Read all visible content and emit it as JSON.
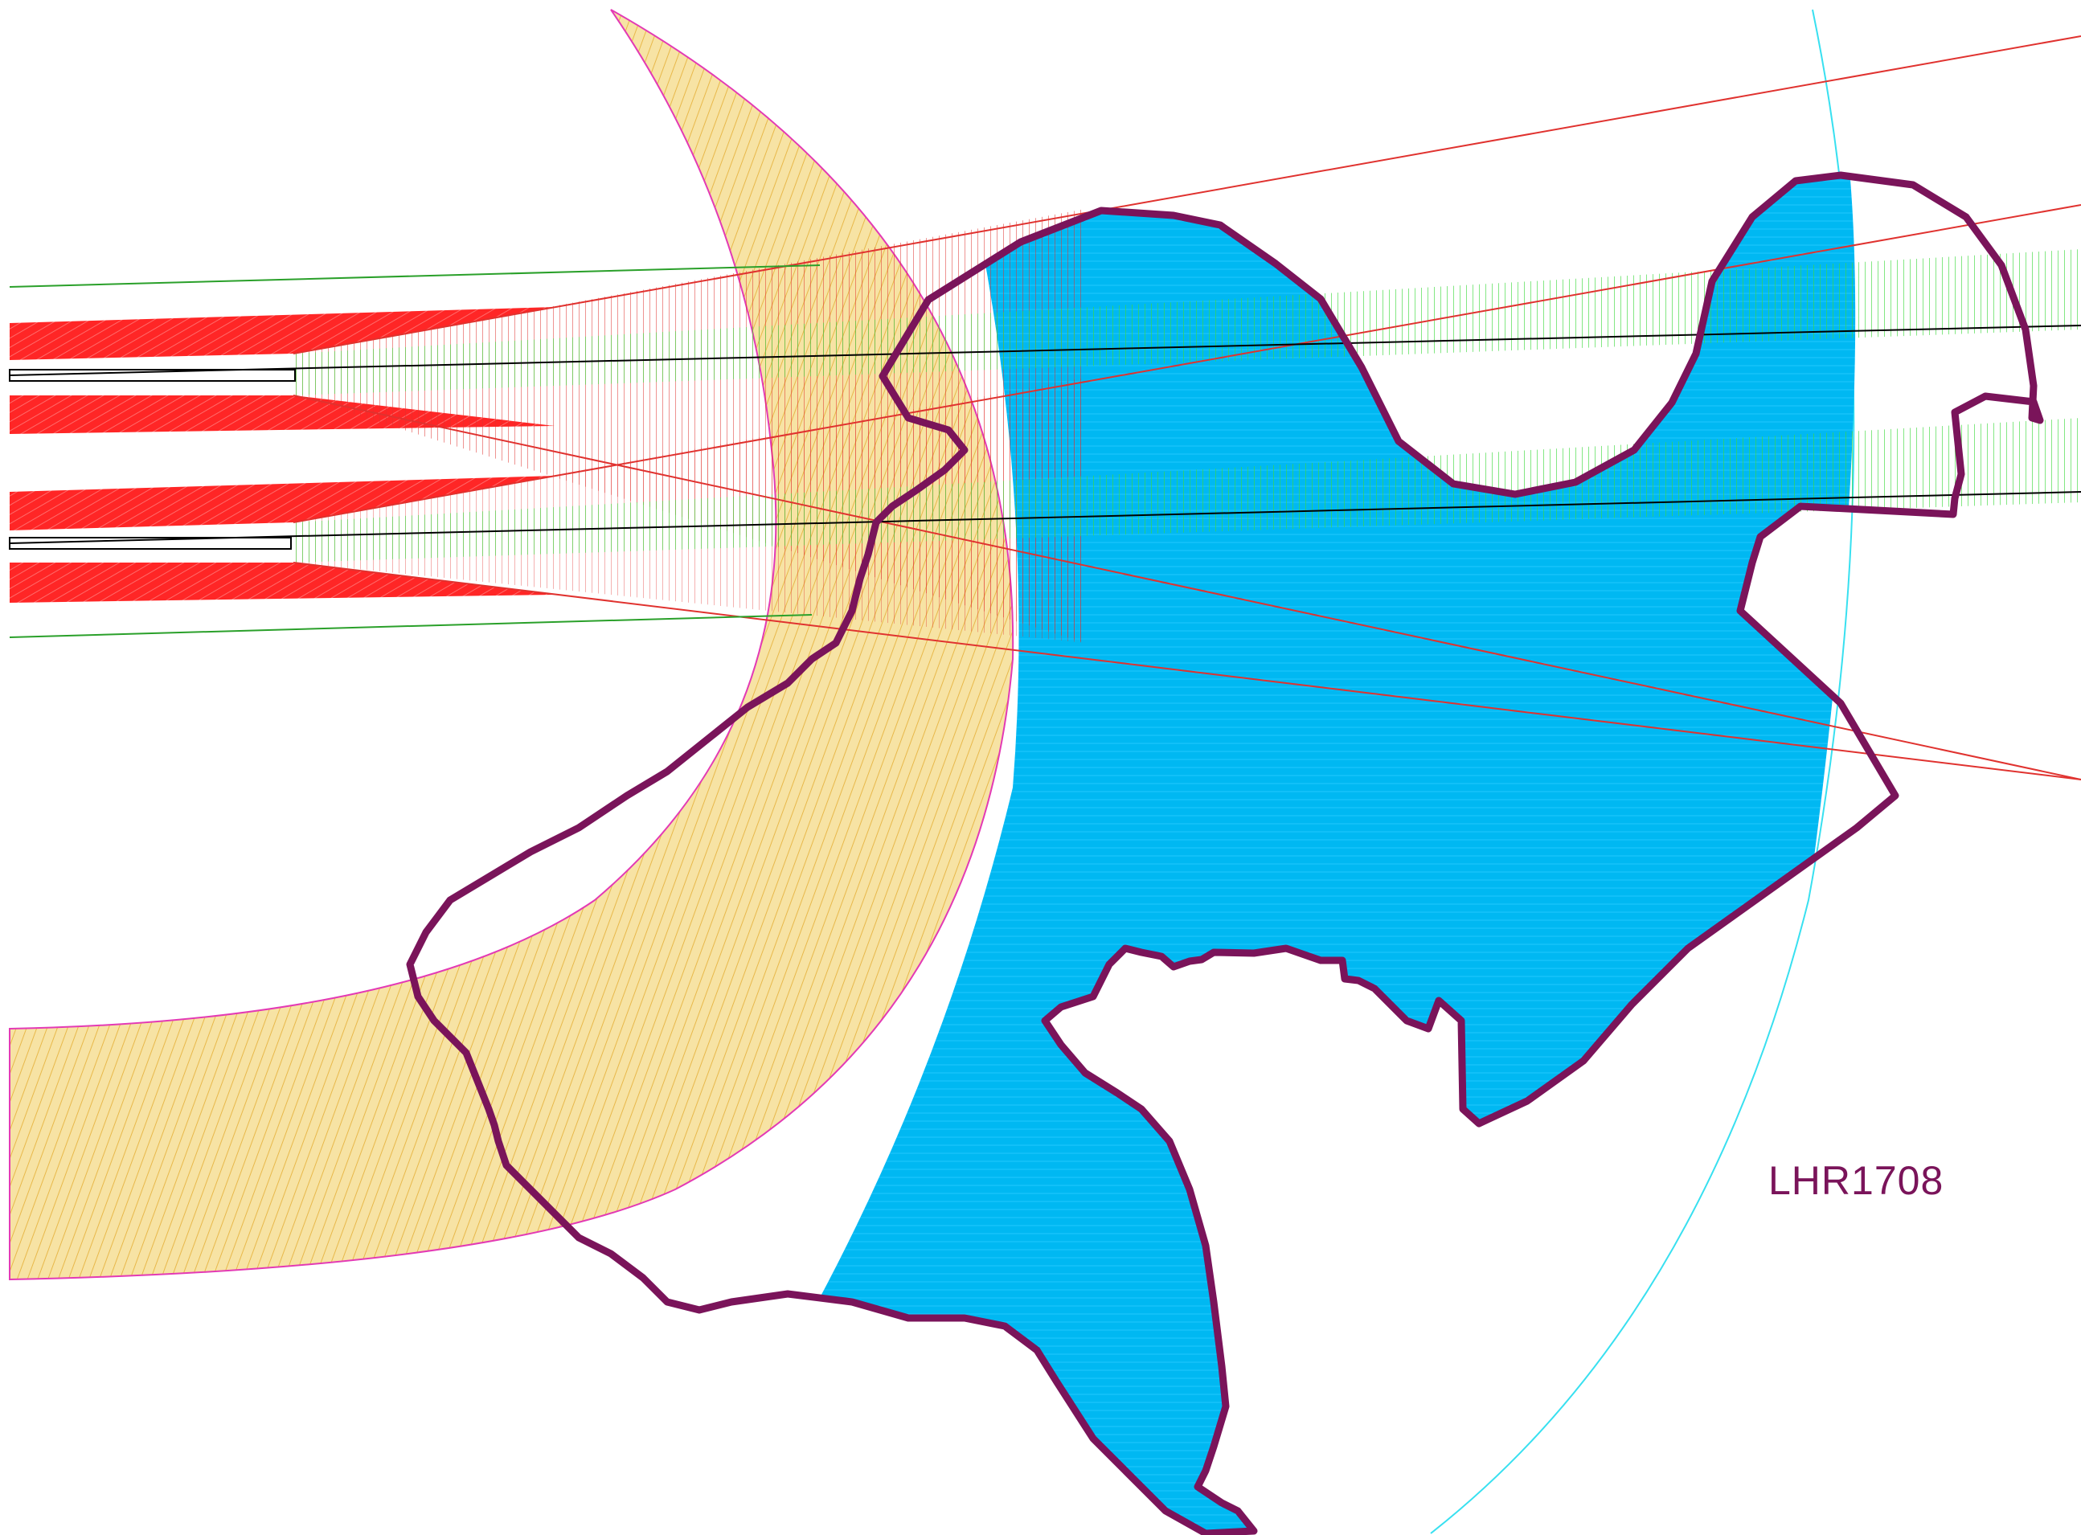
{
  "map": {
    "label": "LHR1708",
    "colors": {
      "background": "#ffffff",
      "boundary": "#7a145a",
      "area_fill": "#00b8f2",
      "arc_band": "#f4d27a",
      "arc_band_edge": "#e33ab5",
      "runway_wedge": "#ff2626",
      "approach_red": "#e0322f",
      "approach_green": "#3fd93f",
      "outer_arc": "#38e0f0",
      "centerline": "#000000"
    },
    "layers": [
      {
        "name": "arc-band",
        "color_key": "arc_band"
      },
      {
        "name": "boundary-area",
        "color_key": "area_fill"
      },
      {
        "name": "runway-wedges",
        "color_key": "runway_wedge"
      },
      {
        "name": "approach-fan-red",
        "color_key": "approach_red"
      },
      {
        "name": "approach-fan-green",
        "color_key": "approach_green"
      },
      {
        "name": "outer-arc",
        "color_key": "outer_arc"
      },
      {
        "name": "runway-centerlines",
        "color_key": "centerline"
      }
    ]
  }
}
